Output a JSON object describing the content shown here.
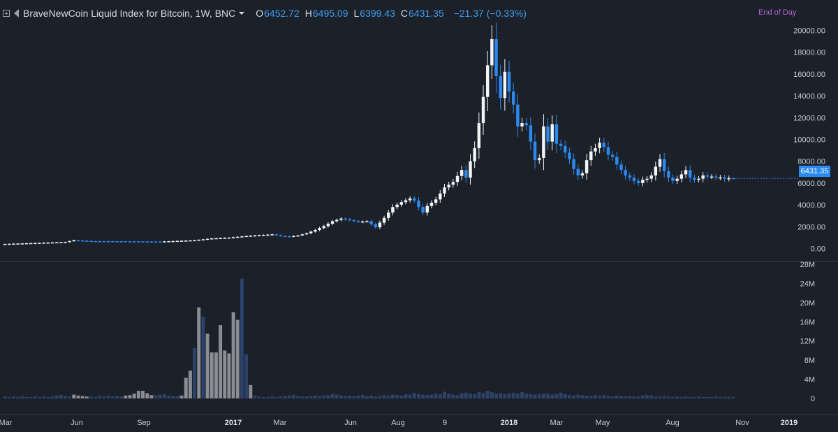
{
  "legend": {
    "symbol": "BraveNewCoin Liquid Index for Bitcoin, 1W, BNC",
    "open_label": "O",
    "open": "6452.72",
    "high_label": "H",
    "high": "6495.09",
    "low_label": "L",
    "low": "6399.43",
    "close_label": "C",
    "close": "6431.35",
    "change": "−21.37 (−0.33%)"
  },
  "end_of_day": "End of Day",
  "last_price_label": "6431.35",
  "colors": {
    "background": "#1c2029",
    "up_candle": "#f2f4f7",
    "down_candle": "#2a8af0",
    "volume_dark": "#2c4268",
    "volume_grey": "#8a8d93",
    "axis_text": "#c7ccd6",
    "accent": "#2a8af0"
  },
  "chart_data": [
    {
      "type": "candlestick",
      "title": "BraveNewCoin Liquid Index for Bitcoin, 1W, BNC",
      "ylim": [
        -800,
        20800
      ],
      "y_ticks": [
        "20000.00",
        "18000.00",
        "16000.00",
        "14000.00",
        "12000.00",
        "10000.00",
        "8000.00",
        "6000.00",
        "4000.00",
        "2000.00",
        "0.00"
      ],
      "x_ticks": [
        "Mar",
        "Jun",
        "Sep",
        "2017",
        "Mar",
        "Jun",
        "Aug",
        "9",
        "2018",
        "Mar",
        "May",
        "Aug",
        "Nov",
        "2019"
      ],
      "grid": false,
      "anchors_close": [
        [
          0,
          420
        ],
        [
          14,
          600
        ],
        [
          16,
          760
        ],
        [
          20,
          680
        ],
        [
          36,
          640
        ],
        [
          44,
          760
        ],
        [
          48,
          930
        ],
        [
          52,
          1000
        ],
        [
          56,
          1150
        ],
        [
          60,
          1250
        ],
        [
          62,
          1300
        ],
        [
          64,
          1150
        ],
        [
          66,
          1100
        ],
        [
          68,
          1200
        ],
        [
          70,
          1400
        ],
        [
          72,
          1700
        ],
        [
          74,
          2050
        ],
        [
          76,
          2500
        ],
        [
          78,
          2750
        ],
        [
          80,
          2600
        ],
        [
          82,
          2450
        ],
        [
          84,
          2500
        ],
        [
          86,
          1950
        ],
        [
          88,
          2800
        ],
        [
          90,
          3800
        ],
        [
          92,
          4250
        ],
        [
          94,
          4600
        ],
        [
          95,
          4400
        ],
        [
          96,
          3800
        ],
        [
          97,
          3300
        ],
        [
          98,
          3900
        ],
        [
          100,
          4500
        ],
        [
          102,
          5600
        ],
        [
          104,
          6100
        ],
        [
          106,
          7200
        ],
        [
          107,
          6500
        ],
        [
          108,
          8000
        ],
        [
          109,
          9200
        ],
        [
          110,
          11500
        ],
        [
          111,
          13900
        ],
        [
          112,
          16800
        ],
        [
          113,
          19200
        ],
        [
          114,
          15800
        ],
        [
          115,
          13800
        ],
        [
          116,
          16200
        ],
        [
          117,
          14400
        ],
        [
          118,
          13200
        ],
        [
          119,
          11200
        ],
        [
          120,
          11500
        ],
        [
          121,
          11300
        ],
        [
          122,
          9800
        ],
        [
          123,
          8100
        ],
        [
          124,
          8300
        ],
        [
          125,
          11200
        ],
        [
          126,
          9800
        ],
        [
          127,
          11400
        ],
        [
          128,
          9600
        ],
        [
          129,
          9400
        ],
        [
          130,
          8800
        ],
        [
          131,
          8200
        ],
        [
          132,
          7300
        ],
        [
          133,
          6700
        ],
        [
          134,
          6900
        ],
        [
          135,
          8100
        ],
        [
          136,
          8900
        ],
        [
          137,
          9200
        ],
        [
          138,
          9700
        ],
        [
          139,
          9300
        ],
        [
          140,
          8600
        ],
        [
          141,
          8400
        ],
        [
          142,
          7700
        ],
        [
          143,
          7200
        ],
        [
          144,
          6700
        ],
        [
          145,
          6500
        ],
        [
          146,
          6200
        ],
        [
          147,
          6000
        ],
        [
          148,
          6300
        ],
        [
          149,
          6400
        ],
        [
          150,
          6700
        ],
        [
          151,
          7500
        ],
        [
          152,
          8200
        ],
        [
          153,
          7100
        ],
        [
          154,
          6500
        ],
        [
          155,
          6200
        ],
        [
          156,
          6400
        ],
        [
          157,
          6800
        ],
        [
          158,
          7200
        ],
        [
          159,
          6500
        ],
        [
          160,
          6300
        ],
        [
          161,
          6400
        ],
        [
          162,
          6700
        ],
        [
          163,
          6600
        ],
        [
          164,
          6600
        ],
        [
          165,
          6500
        ],
        [
          166,
          6520
        ],
        [
          167,
          6400
        ],
        [
          168,
          6452
        ],
        [
          169,
          6431
        ]
      ],
      "last_candle": {
        "open": 6452.72,
        "high": 6495.09,
        "low": 6399.43,
        "close": 6431.35
      }
    },
    {
      "type": "bar",
      "name": "volume",
      "ylim": [
        0,
        28000000
      ],
      "y_ticks": [
        "28M",
        "24M",
        "20M",
        "16M",
        "12M",
        "8M",
        "4M",
        "0"
      ],
      "values_millions": [
        0.4,
        0.3,
        0.4,
        0.3,
        0.4,
        0.3,
        0.3,
        0.4,
        0.3,
        0.4,
        0.3,
        0.4,
        0.6,
        0.7,
        0.5,
        0.4,
        0.8,
        0.6,
        0.5,
        0.4,
        0.4,
        0.3,
        0.5,
        0.4,
        0.6,
        0.4,
        0.5,
        0.4,
        0.6,
        0.7,
        1.0,
        1.6,
        1.6,
        1.1,
        0.7,
        0.7,
        0.8,
        0.9,
        0.6,
        0.5,
        0.5,
        0.6,
        4.3,
        5.8,
        10.5,
        19.0,
        17.1,
        13.5,
        9.6,
        9.6,
        15.3,
        10.0,
        9.4,
        18.0,
        16.4,
        25.0,
        9.2,
        2.8,
        0.6,
        0.4,
        0.3,
        0.3,
        0.4,
        0.3,
        0.4,
        0.5,
        0.6,
        0.7,
        0.5,
        0.4,
        0.4,
        0.5,
        0.6,
        0.5,
        0.6,
        0.7,
        0.9,
        0.8,
        0.6,
        0.5,
        0.6,
        0.5,
        0.6,
        0.7,
        0.5,
        0.6,
        0.4,
        0.5,
        0.7,
        0.6,
        0.8,
        0.7,
        0.6,
        0.9,
        0.8,
        1.2,
        0.9,
        0.8,
        0.7,
        0.8,
        1.0,
        0.9,
        1.4,
        1.0,
        0.8,
        0.7,
        1.1,
        1.2,
        1.0,
        0.9,
        1.3,
        1.1,
        1.6,
        1.3,
        1.0,
        1.1,
        0.9,
        1.0,
        1.2,
        1.0,
        1.3,
        1.0,
        0.9,
        0.8,
        0.9,
        1.0,
        1.0,
        0.8,
        0.9,
        1.2,
        0.9,
        0.7,
        0.6,
        0.8,
        0.7,
        0.6,
        0.5,
        0.7,
        0.6,
        0.7,
        0.5,
        0.4,
        0.6,
        0.5,
        0.4,
        0.5,
        0.4,
        0.4,
        0.6,
        0.7,
        0.6,
        0.4,
        0.4,
        0.5,
        0.4,
        0.3,
        0.4,
        0.3,
        0.4,
        0.3,
        0.3,
        0.4,
        0.3,
        0.3,
        0.3,
        0.4,
        0.3,
        0.3,
        0.3,
        0.3
      ],
      "grey_bar_indices": [
        16,
        17,
        18,
        19,
        28,
        29,
        30,
        31,
        32,
        33,
        34,
        41,
        42,
        43,
        45,
        47,
        48,
        49,
        50,
        51,
        52,
        53,
        54,
        57
      ]
    }
  ]
}
